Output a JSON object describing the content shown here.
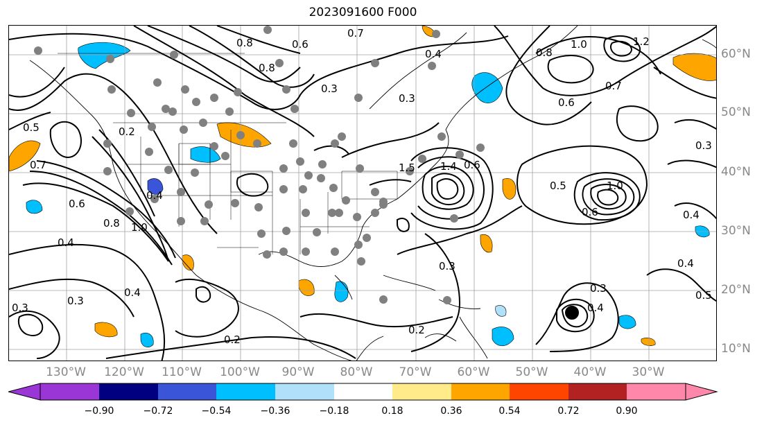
{
  "title": "2023091600 F000",
  "lat_labels": [
    "60°N",
    "50°N",
    "40°N",
    "30°N",
    "20°N",
    "10°N"
  ],
  "lon_labels": [
    "130°W",
    "120°W",
    "110°W",
    "100°W",
    "90°W",
    "80°W",
    "70°W",
    "60°W",
    "50°W",
    "40°W",
    "30°W"
  ],
  "colorbar": {
    "ticks": [
      "−0.90",
      "−0.72",
      "−0.54",
      "−0.36",
      "−0.18",
      "0.18",
      "0.36",
      "0.54",
      "0.72",
      "0.90"
    ],
    "colors": [
      "#9a35d6",
      "#000080",
      "#3a55d8",
      "#00bfff",
      "#b0e0fa",
      "#ffffff",
      "#ffeb8a",
      "#ffa500",
      "#ff4500",
      "#b22222",
      "#ff88aa"
    ]
  },
  "contour_labels": [
    "0.8",
    "0.6",
    "0.7",
    "0.4",
    "0.8",
    "1.0",
    "1.2",
    "0.8",
    "0.7",
    "0.6",
    "0.5",
    "0.7",
    "0.2",
    "0.6",
    "0.8",
    "1.0",
    "0.4",
    "0.3",
    "0.3",
    "0.4",
    "0.2",
    "0.3",
    "0.3",
    "0.5",
    "1.0",
    "0.6",
    "0.3",
    "0.4",
    "0.5",
    "0.4",
    "0.3",
    "0.2",
    "0.3",
    "1.4",
    "1.5",
    "0.4",
    "0.6",
    "0.4"
  ],
  "colors": {
    "contour": "#000000",
    "grid": "#a0a0a0",
    "station": "#808080",
    "border": "#000000"
  }
}
